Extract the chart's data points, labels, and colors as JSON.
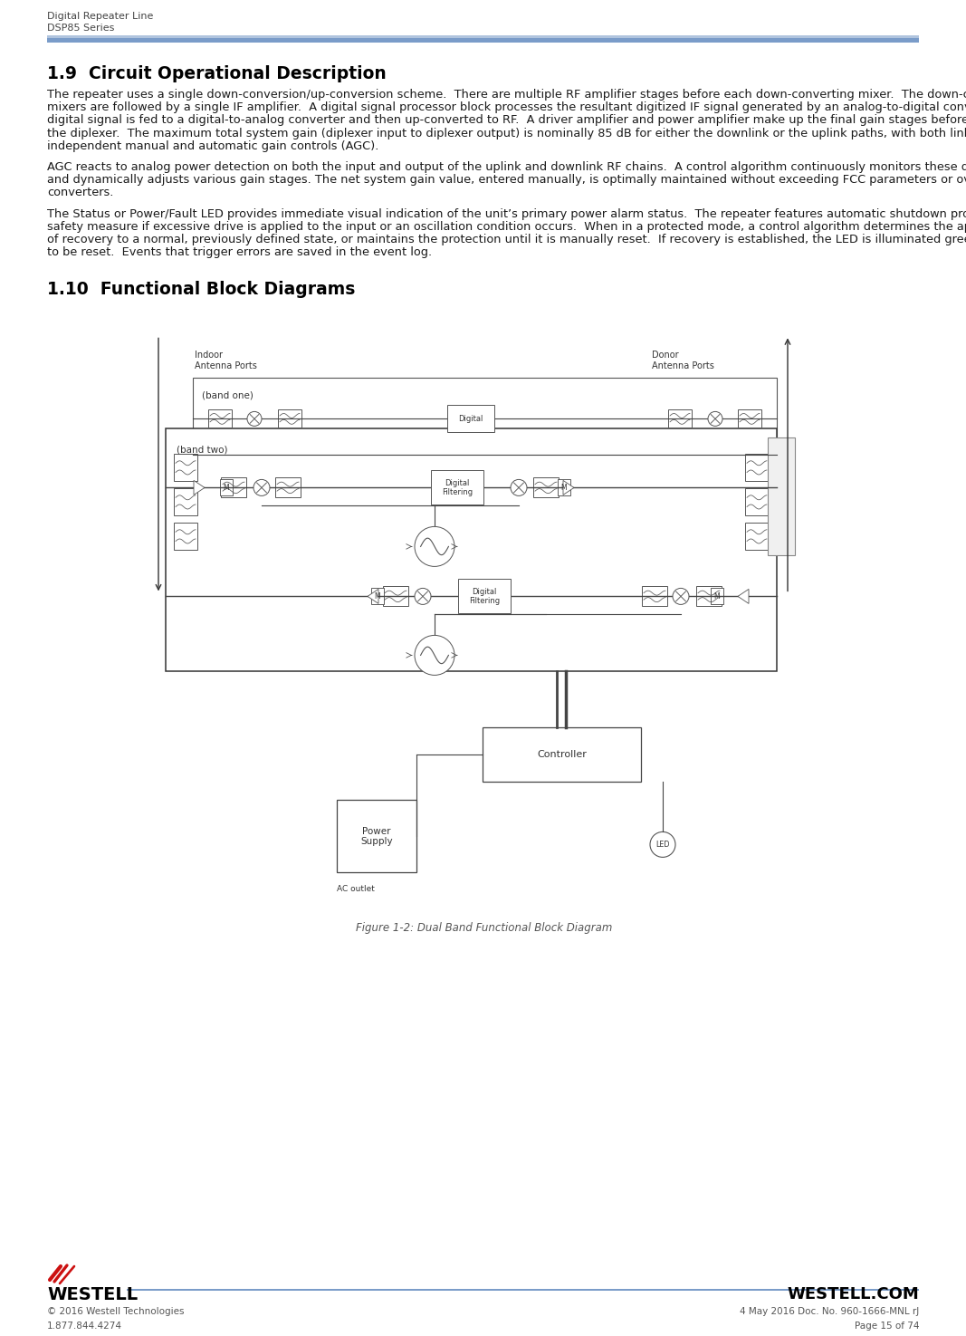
{
  "header_line1": "Digital Repeater Line",
  "header_line2": "DSP85 Series",
  "header_bar_color": "#7a9cc9",
  "header_bar_color2": "#b0c4de",
  "section19_title": "1.9  Circuit Operational Description",
  "section110_title": "1.10  Functional Block Diagrams",
  "para1_lines": [
    "The repeater uses a single down-conversion/up-conversion scheme.  There are multiple RF amplifier stages before each down-converting mixer.  The down-converting",
    "mixers are followed by a single IF amplifier.  A digital signal processor block processes the resultant digitized IF signal generated by an analog-to-digital converter.  The filtered",
    "digital signal is fed to a digital-to-analog converter and then up-converted to RF.  A driver amplifier and power amplifier make up the final gain stages before application to",
    "the diplexer.  The maximum total system gain (diplexer input to diplexer output) is nominally 85 dB for either the downlink or the uplink paths, with both links having",
    "independent manual and automatic gain controls (AGC)."
  ],
  "para2_lines": [
    "AGC reacts to analog power detection on both the input and output of the uplink and downlink RF chains.  A control algorithm continuously monitors these detected values",
    "and dynamically adjusts various gain stages. The net system gain value, entered manually, is optimally maintained without exceeding FCC parameters or overdriving the A/D",
    "converters."
  ],
  "para3_lines": [
    "The Status or Power/Fault LED provides immediate visual indication of the unit’s primary power alarm status.  The repeater features automatic shutdown protection as a",
    "safety measure if excessive drive is applied to the input or an oscillation condition occurs.  When in a protected mode, a control algorithm determines the appropriate method",
    "of recovery to a normal, previously defined state, or maintains the protection until it is manually reset.  If recovery is established, the LED is illuminated green or available",
    "to be reset.  Events that trigger errors are saved in the event log."
  ],
  "figure_caption": "Figure 1-2: Dual Band Functional Block Diagram",
  "footer_brand": "WESTELL",
  "footer_website": "WESTELL.COM",
  "footer_copyright": "© 2016 Westell Technologies",
  "footer_phone": "1.877.844.4274",
  "footer_doc": "4 May 2016 Doc. No. 960-1666-MNL rJ",
  "footer_page": "Page 15 of 74",
  "bg_color": "#ffffff",
  "text_color": "#1a1a1a"
}
